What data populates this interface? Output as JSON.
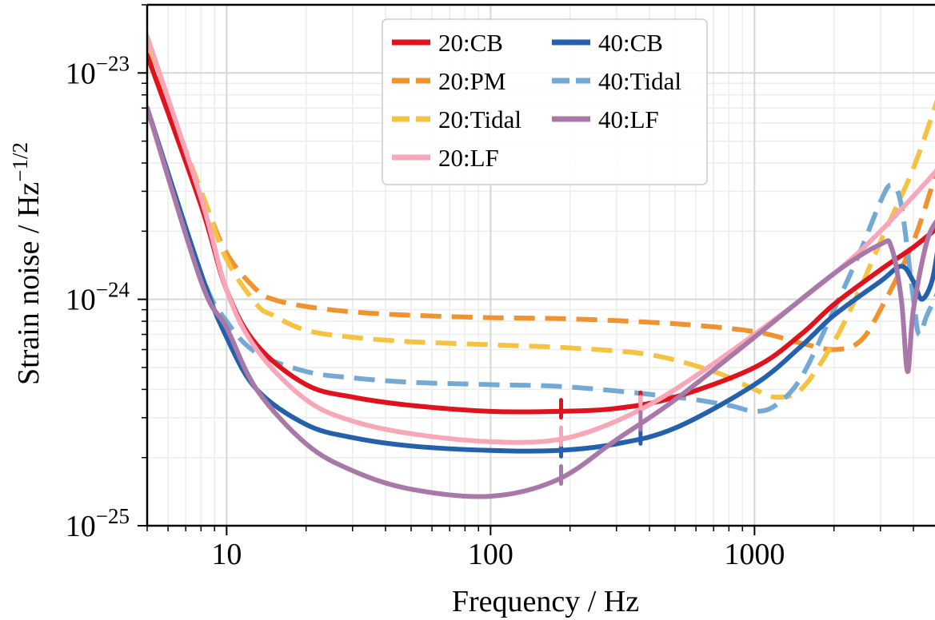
{
  "chart_data": {
    "type": "line",
    "xlabel": "Frequency / Hz",
    "ylabel": {
      "main": "Strain noise / Hz",
      "exponent": "−1/2"
    },
    "xscale": "log",
    "yscale": "log",
    "xlim": [
      5,
      5000
    ],
    "ylim": [
      1e-25,
      2e-23
    ],
    "grid": "major and minor",
    "legend_position": "top-center",
    "legend_columns": 2,
    "x_tick_labels": [
      "10",
      "100",
      "1000"
    ],
    "y_tick_labels": [
      {
        "base": "10",
        "exp": "−25",
        "value": 1e-25
      },
      {
        "base": "10",
        "exp": "−24",
        "value": 1e-24
      },
      {
        "base": "10",
        "exp": "−23",
        "value": 1e-23
      }
    ],
    "series": [
      {
        "name": "20:CB",
        "color": "#e0121d",
        "style": "solid",
        "x": [
          5,
          8,
          10,
          13,
          20,
          30,
          50,
          100,
          180,
          300,
          500,
          1000,
          1500,
          2000,
          3000,
          4000,
          5000
        ],
        "y": [
          1.2e-23,
          2.6e-24,
          1.1e-24,
          6.3e-25,
          4.2e-25,
          3.7e-25,
          3.4e-25,
          3.2e-25,
          3.2e-25,
          3.3e-25,
          3.7e-25,
          5e-25,
          7e-25,
          9.5e-25,
          1.35e-24,
          1.7e-24,
          2.1e-24
        ]
      },
      {
        "name": "20:PM",
        "color": "#f0922e",
        "style": "dashed",
        "x": [
          5,
          8,
          10,
          13,
          15,
          20,
          30,
          50,
          100,
          200,
          500,
          1000,
          1500,
          2000,
          2500,
          3000,
          4000,
          5000
        ],
        "y": [
          1.3e-23,
          3e-24,
          1.6e-24,
          1.1e-24,
          1e-24,
          9.3e-25,
          8.8e-25,
          8.5e-25,
          8.3e-25,
          8.2e-25,
          7.8e-25,
          7.2e-25,
          6.4e-25,
          6e-25,
          6.5e-25,
          9e-25,
          1.8e-24,
          4e-24
        ]
      },
      {
        "name": "20:Tidal",
        "color": "#f6c241",
        "style": "dashed",
        "x": [
          5,
          8,
          10,
          13,
          15,
          20,
          30,
          50,
          100,
          200,
          400,
          700,
          1000,
          1200,
          1500,
          2000,
          2500,
          3000,
          4000,
          5000
        ],
        "y": [
          1.3e-23,
          3e-24,
          1.5e-24,
          9.5e-25,
          8.5e-25,
          7.3e-25,
          6.8e-25,
          6.5e-25,
          6.3e-25,
          6.1e-25,
          5.7e-25,
          4.8e-25,
          4e-25,
          3.7e-25,
          4e-25,
          6.5e-25,
          1.1e-24,
          1.8e-24,
          3.8e-24,
          8e-24
        ]
      },
      {
        "name": "20:LF",
        "color": "#f7a7b8",
        "style": "solid",
        "x": [
          5,
          8,
          10,
          13,
          20,
          30,
          50,
          100,
          180,
          300,
          500,
          1000,
          2000,
          3000,
          5000
        ],
        "y": [
          1.45e-23,
          2.8e-24,
          1.1e-24,
          6e-25,
          3.6e-25,
          2.9e-25,
          2.55e-25,
          2.35e-25,
          2.4e-25,
          2.9e-25,
          4e-25,
          7e-25,
          1.3e-24,
          2e-24,
          3.8e-24
        ]
      },
      {
        "name": "40:CB",
        "color": "#2461ac",
        "style": "solid",
        "x": [
          5,
          8,
          10,
          13,
          20,
          30,
          50,
          100,
          180,
          300,
          500,
          1000,
          1500,
          2000,
          3000,
          3600,
          4000,
          4300,
          4700,
          5000
        ],
        "y": [
          7e-24,
          1.3e-24,
          6.8e-25,
          4e-25,
          2.8e-25,
          2.45e-25,
          2.25e-25,
          2.15e-25,
          2.15e-25,
          2.3e-25,
          2.7e-25,
          4.2e-25,
          6.2e-25,
          8.5e-25,
          1.2e-24,
          1.4e-24,
          1.2e-24,
          1e-24,
          1.2e-24,
          1.8e-24
        ]
      },
      {
        "name": "40:Tidal",
        "color": "#74a9d5",
        "style": "dashed",
        "x": [
          5,
          8,
          10,
          13,
          20,
          30,
          50,
          100,
          200,
          500,
          800,
          1000,
          1200,
          1500,
          2000,
          2500,
          3000,
          3300,
          3600,
          4000,
          4200,
          4500,
          5000
        ],
        "y": [
          7e-24,
          1.3e-24,
          8e-25,
          5.8e-25,
          4.8e-25,
          4.5e-25,
          4.3e-25,
          4.2e-25,
          4.1e-25,
          3.7e-25,
          3.4e-25,
          3.2e-25,
          3.4e-25,
          4.5e-25,
          9e-25,
          1.6e-24,
          2.7e-24,
          3.2e-24,
          2.6e-24,
          1e-24,
          7e-25,
          8.5e-25,
          1.1e-24
        ]
      },
      {
        "name": "40:LF",
        "color": "#a878a8",
        "style": "solid",
        "x": [
          5,
          8,
          10,
          13,
          20,
          30,
          50,
          100,
          180,
          300,
          500,
          1000,
          2000,
          3000,
          3300,
          3600,
          3800,
          4000,
          4500,
          5000
        ],
        "y": [
          7e-24,
          1.2e-24,
          7.5e-25,
          4e-25,
          2.3e-25,
          1.75e-25,
          1.45e-25,
          1.35e-25,
          1.6e-25,
          2.4e-25,
          3.6e-25,
          6.8e-25,
          1.3e-24,
          1.75e-24,
          1.7e-24,
          1e-24,
          4.8e-25,
          9e-25,
          1.8e-24,
          2.3e-24
        ]
      }
    ],
    "annotations": {
      "spike_frequencies": [
        185,
        370
      ]
    }
  }
}
